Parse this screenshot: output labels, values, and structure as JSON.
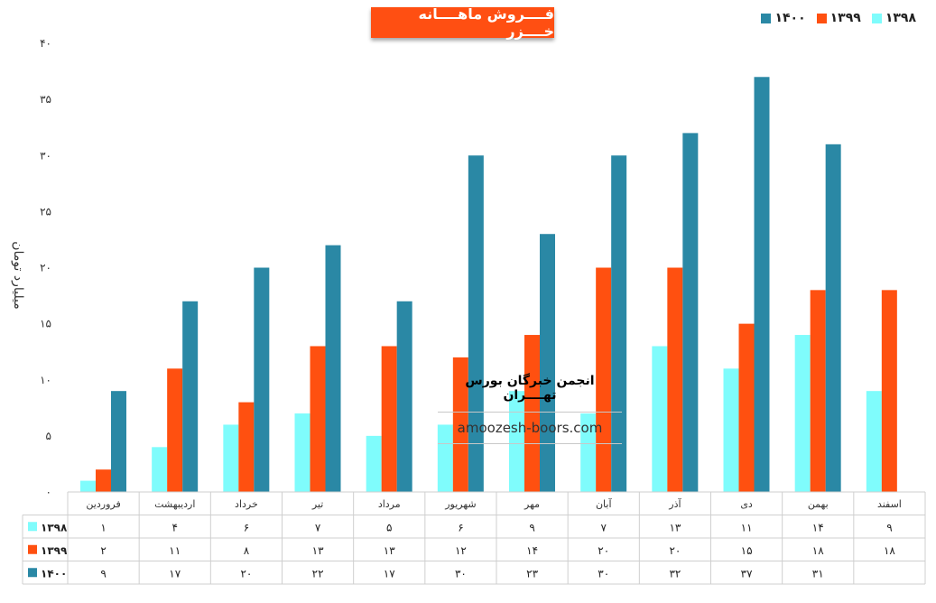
{
  "chart_data": {
    "type": "bar",
    "title": "فــــروش ماهــــانه خــــزر",
    "ylabel": "میلیارد تومان",
    "ylim": [
      0,
      40
    ],
    "yticks": [
      "۰",
      "۵",
      "۱۰",
      "۱۵",
      "۲۰",
      "۲۵",
      "۳۰",
      "۳۵",
      "۴۰"
    ],
    "categories": [
      "فروردین",
      "اردیبهشت",
      "خرداد",
      "تیر",
      "مرداد",
      "شهریور",
      "مهر",
      "آبان",
      "آذر",
      "دی",
      "بهمن",
      "اسفند"
    ],
    "series": [
      {
        "name": "۱۳۹۸",
        "color": "#7ffcfc",
        "values": [
          1,
          4,
          6,
          7,
          5,
          6,
          9,
          7,
          13,
          11,
          14,
          9
        ],
        "labels": [
          "۱",
          "۴",
          "۶",
          "۷",
          "۵",
          "۶",
          "۹",
          "۷",
          "۱۳",
          "۱۱",
          "۱۴",
          "۹"
        ]
      },
      {
        "name": "۱۳۹۹",
        "color": "#ff5010",
        "values": [
          2,
          11,
          8,
          13,
          13,
          12,
          14,
          20,
          20,
          15,
          18,
          18
        ],
        "labels": [
          "۲",
          "۱۱",
          "۸",
          "۱۳",
          "۱۳",
          "۱۲",
          "۱۴",
          "۲۰",
          "۲۰",
          "۱۵",
          "۱۸",
          "۱۸"
        ]
      },
      {
        "name": "۱۴۰۰",
        "color": "#2a88a5",
        "values": [
          9,
          17,
          20,
          22,
          17,
          30,
          23,
          30,
          32,
          37,
          31,
          null
        ],
        "labels": [
          "۹",
          "۱۷",
          "۲۰",
          "۲۲",
          "۱۷",
          "۳۰",
          "۲۳",
          "۳۰",
          "۳۲",
          "۳۷",
          "۳۱",
          ""
        ]
      }
    ],
    "legend_position": "top-right",
    "data_table": true
  },
  "watermark": {
    "title": "انجمن خبرگان بورس تهــــران",
    "url": "amoozesh-boors.com"
  }
}
